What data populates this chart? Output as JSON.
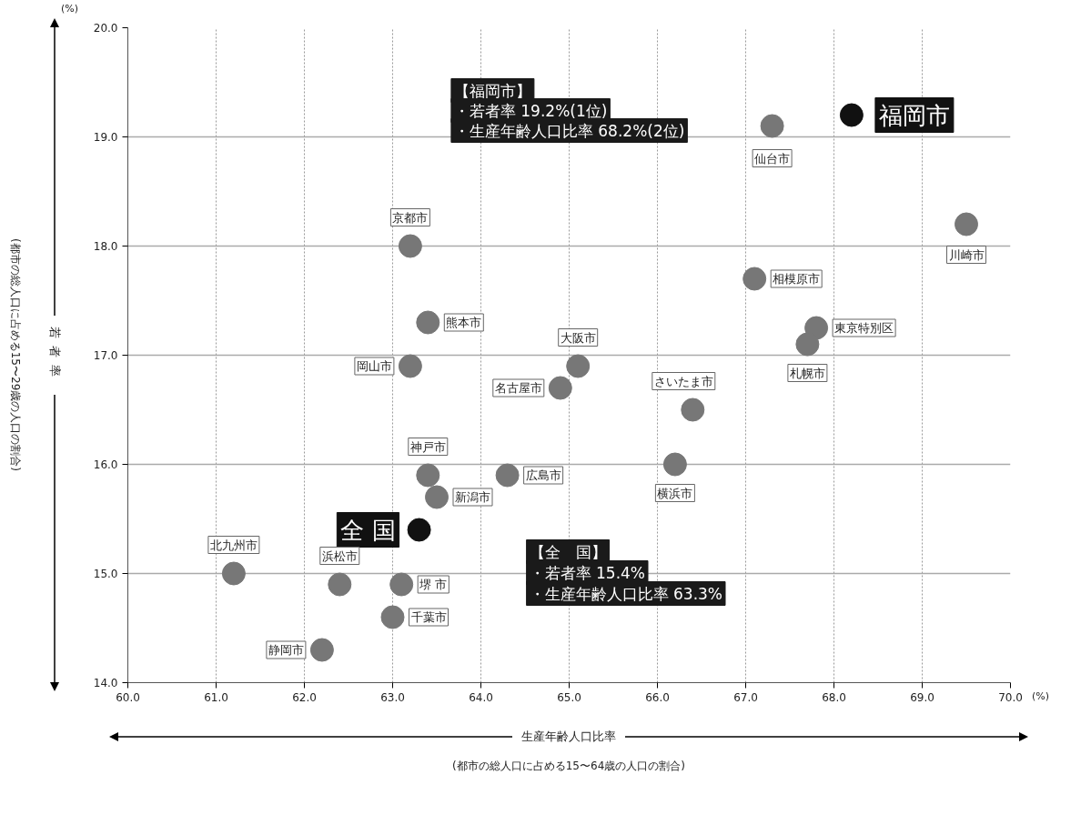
{
  "chart_data": {
    "type": "scatter",
    "xlabel": "生産年齢人口比率",
    "ylabel": "若者率",
    "xlim": [
      60,
      70
    ],
    "ylim": [
      14,
      20
    ],
    "xticks": [
      {
        "value": 60,
        "label": "60.0"
      },
      {
        "value": 61,
        "label": "61.0"
      },
      {
        "value": 62,
        "label": "62.0"
      },
      {
        "value": 63,
        "label": "63.0"
      },
      {
        "value": 64,
        "label": "64.0"
      },
      {
        "value": 65,
        "label": "65.0"
      },
      {
        "value": 66,
        "label": "66.0"
      },
      {
        "value": 67,
        "label": "67.0"
      },
      {
        "value": 68,
        "label": "68.0"
      },
      {
        "value": 69,
        "label": "69.0"
      },
      {
        "value": 70,
        "label": "70.0"
      }
    ],
    "yticks": [
      {
        "value": 14,
        "label": "14.0"
      },
      {
        "value": 15,
        "label": "15.0"
      },
      {
        "value": 16,
        "label": "16.0"
      },
      {
        "value": 17,
        "label": "17.0"
      },
      {
        "value": 18,
        "label": "18.0"
      },
      {
        "value": 19,
        "label": "19.0"
      },
      {
        "value": 20,
        "label": "20.0"
      }
    ],
    "grid": true,
    "marker": "circle",
    "series": [
      {
        "color": "#111111",
        "x": [
          68.2,
          63.3
        ],
        "values": [
          19.2,
          15.4
        ]
      },
      {
        "color": "#777777",
        "x": [
          67.3,
          69.5,
          63.2,
          67.1,
          63.4,
          67.8,
          67.7,
          63.2,
          65.1,
          64.9,
          66.4,
          66.2,
          63.4,
          64.3,
          63.5,
          61.2,
          62.4,
          63.1,
          63.0,
          62.2
        ],
        "values": [
          19.1,
          18.2,
          18.0,
          17.7,
          17.3,
          17.25,
          17.1,
          16.9,
          16.9,
          16.7,
          16.5,
          16.0,
          15.9,
          15.9,
          15.7,
          15.0,
          14.9,
          14.9,
          14.6,
          14.3
        ]
      }
    ],
    "annotations": [
      {
        "text": "福岡市",
        "x": 68.2,
        "y": 19.2
      },
      {
        "text": "全 国",
        "x": 63.3,
        "y": 15.4
      },
      {
        "text": "仙台市",
        "x": 67.3,
        "y": 19.1
      },
      {
        "text": "川崎市",
        "x": 69.5,
        "y": 18.2
      },
      {
        "text": "京都市",
        "x": 63.2,
        "y": 18.0
      },
      {
        "text": "相模原市",
        "x": 67.1,
        "y": 17.7
      },
      {
        "text": "熊本市",
        "x": 63.4,
        "y": 17.3
      },
      {
        "text": "東京特別区",
        "x": 67.8,
        "y": 17.25
      },
      {
        "text": "札幌市",
        "x": 67.7,
        "y": 17.1
      },
      {
        "text": "岡山市",
        "x": 63.2,
        "y": 16.9
      },
      {
        "text": "大阪市",
        "x": 65.1,
        "y": 16.9
      },
      {
        "text": "名古屋市",
        "x": 64.9,
        "y": 16.7
      },
      {
        "text": "さいたま市",
        "x": 66.4,
        "y": 16.5
      },
      {
        "text": "横浜市",
        "x": 66.2,
        "y": 16.0
      },
      {
        "text": "神戸市",
        "x": 63.4,
        "y": 15.9
      },
      {
        "text": "広島市",
        "x": 64.3,
        "y": 15.9
      },
      {
        "text": "新潟市",
        "x": 63.5,
        "y": 15.7
      },
      {
        "text": "北九州市",
        "x": 61.2,
        "y": 15.0
      },
      {
        "text": "浜松市",
        "x": 62.4,
        "y": 14.9
      },
      {
        "text": "堺 市",
        "x": 63.1,
        "y": 14.9
      },
      {
        "text": "千葉市",
        "x": 63.0,
        "y": 14.6
      },
      {
        "text": "静岡市",
        "x": 62.2,
        "y": 14.3
      },
      "【福岡市】",
      "・若者率 19.2%(1位)",
      "・生産年齢人口比率 68.2%(2位)",
      "【全　国】",
      "・若者率 15.4%",
      "・生産年齢人口比率 63.3%",
      "(%)",
      "(%)",
      "(都市の総人口に占める15〜64歳の人口の割合)",
      "(都市の総人口に占める15〜29歳の人口の割合)"
    ]
  }
}
